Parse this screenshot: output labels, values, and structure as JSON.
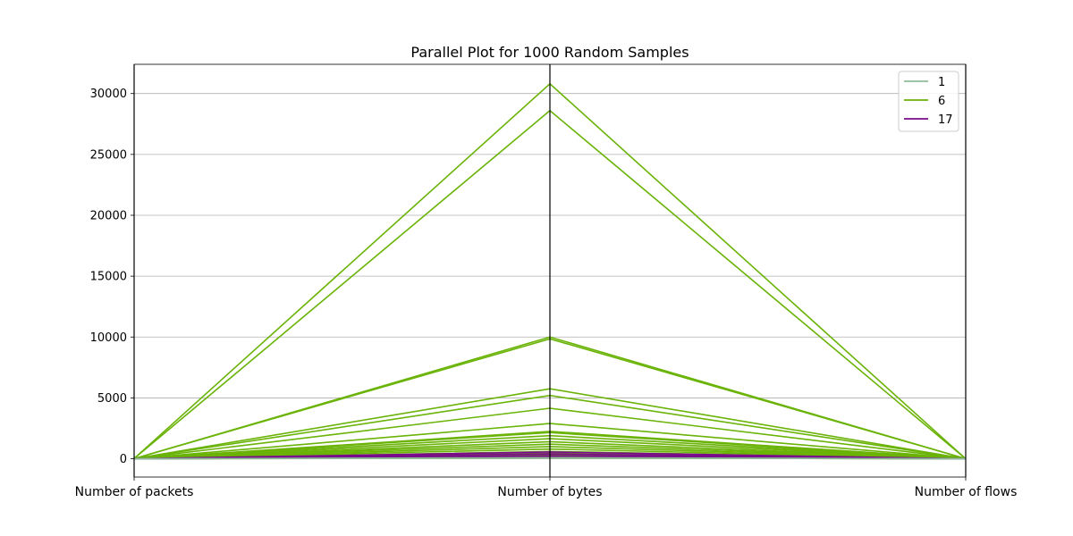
{
  "chart_data": {
    "type": "line",
    "subtype": "parallel-coordinates",
    "title": "Parallel Plot for 1000 Random Samples",
    "categories": [
      "Number of packets",
      "Number of bytes",
      "Number of flows"
    ],
    "ylim": [
      -1500,
      32400
    ],
    "yticks": [
      0,
      5000,
      10000,
      15000,
      20000,
      25000,
      30000
    ],
    "grid": true,
    "legend_position": "top-right",
    "legend": [
      {
        "label": "1",
        "color": "#8fbc9a"
      },
      {
        "label": "6",
        "color": "#6ab307"
      },
      {
        "label": "17",
        "color": "#7a0a8c"
      }
    ],
    "series": [
      {
        "name": "6",
        "color": "#6ab307",
        "values": [
          20,
          30800,
          1
        ]
      },
      {
        "name": "6",
        "color": "#6ab307",
        "values": [
          19,
          28600,
          1
        ]
      },
      {
        "name": "6",
        "color": "#6ab307",
        "values": [
          7,
          10000,
          1
        ]
      },
      {
        "name": "6",
        "color": "#6ab307",
        "values": [
          7,
          9850,
          1
        ]
      },
      {
        "name": "6",
        "color": "#6ab307",
        "values": [
          5,
          5750,
          1
        ]
      },
      {
        "name": "6",
        "color": "#6ab307",
        "values": [
          5,
          5200,
          1
        ]
      },
      {
        "name": "6",
        "color": "#6ab307",
        "values": [
          4,
          4150,
          1
        ]
      },
      {
        "name": "6",
        "color": "#6ab307",
        "values": [
          3,
          2900,
          1
        ]
      },
      {
        "name": "6",
        "color": "#6ab307",
        "values": [
          3,
          2250,
          1
        ]
      },
      {
        "name": "6",
        "color": "#6ab307",
        "values": [
          3,
          2150,
          1
        ]
      },
      {
        "name": "6",
        "color": "#6ab307",
        "values": [
          3,
          1900,
          1
        ]
      },
      {
        "name": "6",
        "color": "#6ab307",
        "values": [
          2,
          1650,
          1
        ]
      },
      {
        "name": "6",
        "color": "#6ab307",
        "values": [
          2,
          1400,
          1
        ]
      },
      {
        "name": "6",
        "color": "#6ab307",
        "values": [
          2,
          1200,
          1
        ]
      },
      {
        "name": "6",
        "color": "#6ab307",
        "values": [
          2,
          1000,
          1
        ]
      },
      {
        "name": "6",
        "color": "#6ab307",
        "values": [
          1,
          800,
          1
        ]
      },
      {
        "name": "6",
        "color": "#6ab307",
        "values": [
          1,
          600,
          1
        ]
      },
      {
        "name": "6",
        "color": "#6ab307",
        "values": [
          1,
          450,
          1
        ]
      },
      {
        "name": "6",
        "color": "#6ab307",
        "values": [
          1,
          300,
          1
        ]
      },
      {
        "name": "6",
        "color": "#6ab307",
        "values": [
          1,
          150,
          1
        ]
      },
      {
        "name": "6",
        "color": "#6ab307",
        "values": [
          1,
          60,
          1
        ]
      },
      {
        "name": "17",
        "color": "#7a0a8c",
        "values": [
          1,
          560,
          1
        ]
      },
      {
        "name": "17",
        "color": "#7a0a8c",
        "values": [
          1,
          400,
          1
        ]
      },
      {
        "name": "17",
        "color": "#7a0a8c",
        "values": [
          1,
          250,
          1
        ]
      },
      {
        "name": "17",
        "color": "#7a0a8c",
        "values": [
          1,
          120,
          1
        ]
      },
      {
        "name": "1",
        "color": "#8fbc9a",
        "values": [
          1,
          84,
          1
        ]
      },
      {
        "name": "1",
        "color": "#8fbc9a",
        "values": [
          1,
          60,
          1
        ]
      }
    ]
  }
}
